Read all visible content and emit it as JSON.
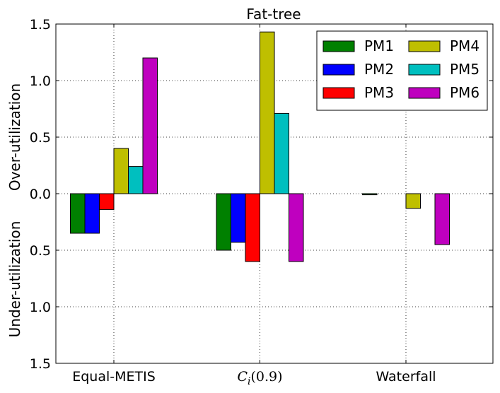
{
  "chart_data": {
    "type": "bar",
    "title": "Fat-tree",
    "ylabel_top": "Over-utilization",
    "ylabel_bottom": "Under-utilization",
    "categories": [
      "Equal-METIS",
      "C_i(0.9)",
      "Waterfall"
    ],
    "category_display": [
      {
        "plain": "Equal-METIS"
      },
      {
        "main": "C",
        "sub": "i",
        "suffix": "(0.9)"
      },
      {
        "plain": "Waterfall"
      }
    ],
    "ylim": [
      -1.5,
      1.5
    ],
    "yticks": [
      1.5,
      1.0,
      0.5,
      0.0,
      -0.5,
      -1.0,
      -1.5
    ],
    "ytick_labels": [
      "1.5",
      "1.0",
      "0.5",
      "0.0",
      "0.5",
      "1.0",
      "1.5"
    ],
    "grid": true,
    "legend_position": "top-right",
    "series": [
      {
        "name": "PM1",
        "color": "#008000",
        "values": [
          -0.35,
          -0.5,
          -0.01
        ]
      },
      {
        "name": "PM2",
        "color": "#0000ff",
        "values": [
          -0.35,
          -0.43,
          0.0
        ]
      },
      {
        "name": "PM3",
        "color": "#ff0000",
        "values": [
          -0.14,
          -0.6,
          0.0
        ]
      },
      {
        "name": "PM4",
        "color": "#bfbf00",
        "values": [
          0.4,
          1.43,
          -0.13
        ]
      },
      {
        "name": "PM5",
        "color": "#00bfbf",
        "values": [
          0.24,
          0.71,
          0.0
        ]
      },
      {
        "name": "PM6",
        "color": "#bf00bf",
        "values": [
          1.2,
          -0.6,
          -0.45
        ]
      }
    ]
  }
}
